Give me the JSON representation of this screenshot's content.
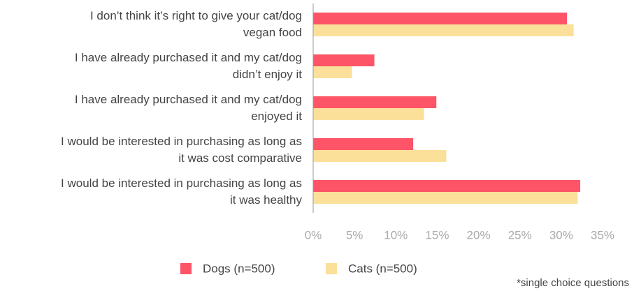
{
  "chart_data": {
    "type": "bar",
    "orientation": "horizontal",
    "categories": [
      "I don’t think it’s right to give your cat/dog\nvegan food",
      "I have already purchased it and my cat/dog\ndidn’t enjoy it",
      "I have already purchased it and my cat/dog\nenjoyed it",
      "I would be interested in purchasing as long as\nit was cost comparative",
      "I would be interested in purchasing as long as\nit was healthy"
    ],
    "series": [
      {
        "name": "Dogs (n=500)",
        "color": "#fd5468",
        "values": [
          30.7,
          7.4,
          14.9,
          12.1,
          32.3
        ]
      },
      {
        "name": "Cats (n=500)",
        "color": "#fbe09a",
        "values": [
          31.5,
          4.7,
          13.4,
          16.1,
          32.0
        ]
      }
    ],
    "xlim": [
      0,
      35
    ],
    "xticks": [
      {
        "value": 0,
        "label": "0%"
      },
      {
        "value": 5,
        "label": "5%"
      },
      {
        "value": 10,
        "label": "10%"
      },
      {
        "value": 15,
        "label": "15%"
      },
      {
        "value": 20,
        "label": "20%"
      },
      {
        "value": 25,
        "label": "25%"
      },
      {
        "value": 30,
        "label": "30%"
      },
      {
        "value": 35,
        "label": "35%"
      }
    ],
    "legend": "bottom",
    "footnote": "*single choice questions"
  }
}
